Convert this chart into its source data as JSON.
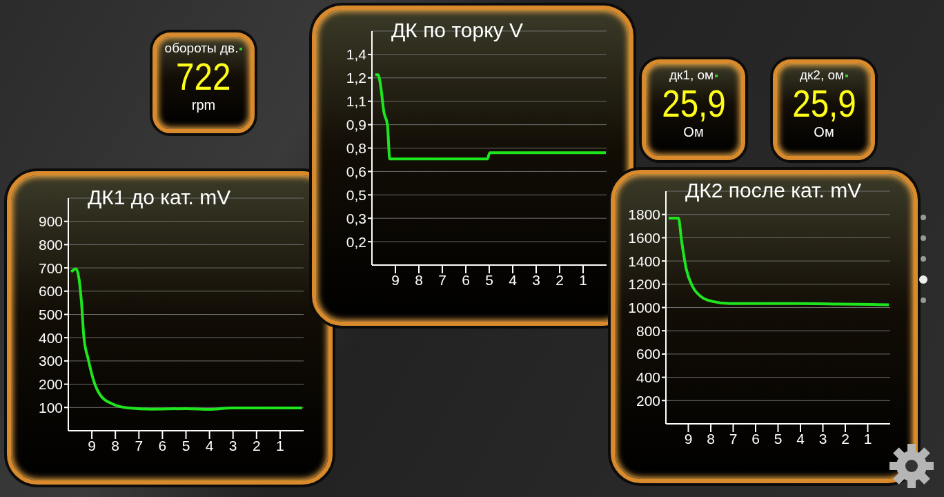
{
  "chart_data": [
    {
      "type": "other",
      "title": "обороты дв.",
      "annotations": [
        "722",
        "rpm"
      ]
    },
    {
      "type": "line",
      "title": "ДК по торку V",
      "x": [
        9.86,
        9.74,
        9.64,
        9.49,
        9.34,
        9.24,
        5.08,
        4.98,
        0.03
      ],
      "series": [
        {
          "color": "#1ee61e",
          "values": [
            1.22,
            1.22,
            1.16,
            0.98,
            0.9,
            0.68,
            0.68,
            0.72,
            0.72
          ]
        }
      ],
      "xlim": [
        10,
        0
      ],
      "xticks": [
        9,
        8,
        7,
        6,
        5,
        4,
        3,
        2,
        1
      ],
      "ylim": [
        0,
        1.5
      ],
      "yticks": [
        {
          "value": 0.15,
          "label": "0,2"
        },
        {
          "value": 0.3,
          "label": "0,3"
        },
        {
          "value": 0.45,
          "label": "0,5"
        },
        {
          "value": 0.6,
          "label": "0,6"
        },
        {
          "value": 0.75,
          "label": "0,8"
        },
        {
          "value": 0.9,
          "label": "0,9"
        },
        {
          "value": 1.05,
          "label": "1,1"
        },
        {
          "value": 1.2,
          "label": "1,2"
        },
        {
          "value": 1.35,
          "label": "1,4"
        }
      ],
      "grid": "y",
      "marker": "none"
    },
    {
      "type": "other",
      "title": "дк1, ом",
      "annotations": [
        "25,9",
        "Ом"
      ]
    },
    {
      "type": "other",
      "title": "дк2, ом",
      "annotations": [
        "25,9",
        "Ом"
      ]
    },
    {
      "type": "line",
      "title": "ДК1 до кат. mV",
      "x": [
        9.88,
        9.67,
        9.54,
        9.44,
        9.34,
        9.15,
        8.9,
        8.61,
        8.12,
        7.44,
        6.46,
        4.99,
        4.01,
        3.04,
        0.06
      ],
      "series": [
        {
          "color": "#1ee61e",
          "values": [
            683,
            696,
            649,
            551,
            404,
            306,
            208,
            149,
            115,
            98,
            93,
            95,
            92,
            98,
            98
          ]
        }
      ],
      "xlim": [
        10,
        0
      ],
      "xticks": [
        9,
        8,
        7,
        6,
        5,
        4,
        3,
        2,
        1
      ],
      "ylim": [
        0,
        1000
      ],
      "yticks": [
        100,
        200,
        300,
        400,
        500,
        600,
        700,
        800,
        900
      ],
      "grid": "y",
      "marker": "none"
    },
    {
      "type": "line",
      "title": "ДК2 после кат. mV",
      "x": [
        9.88,
        9.44,
        9.3,
        9.1,
        8.81,
        8.42,
        7.93,
        7.14,
        4.21,
        2.26,
        0.06
      ],
      "series": [
        {
          "color": "#1ee61e",
          "values": [
            1769,
            1769,
            1572,
            1337,
            1181,
            1092,
            1053,
            1034,
            1034,
            1030,
            1024
          ]
        }
      ],
      "xlim": [
        10,
        0
      ],
      "xticks": [
        9,
        8,
        7,
        6,
        5,
        4,
        3,
        2,
        1
      ],
      "ylim": [
        0,
        2000
      ],
      "yticks": [
        200,
        400,
        600,
        800,
        1000,
        1200,
        1400,
        1600,
        1800
      ],
      "grid": "y",
      "marker": "none"
    }
  ]
}
